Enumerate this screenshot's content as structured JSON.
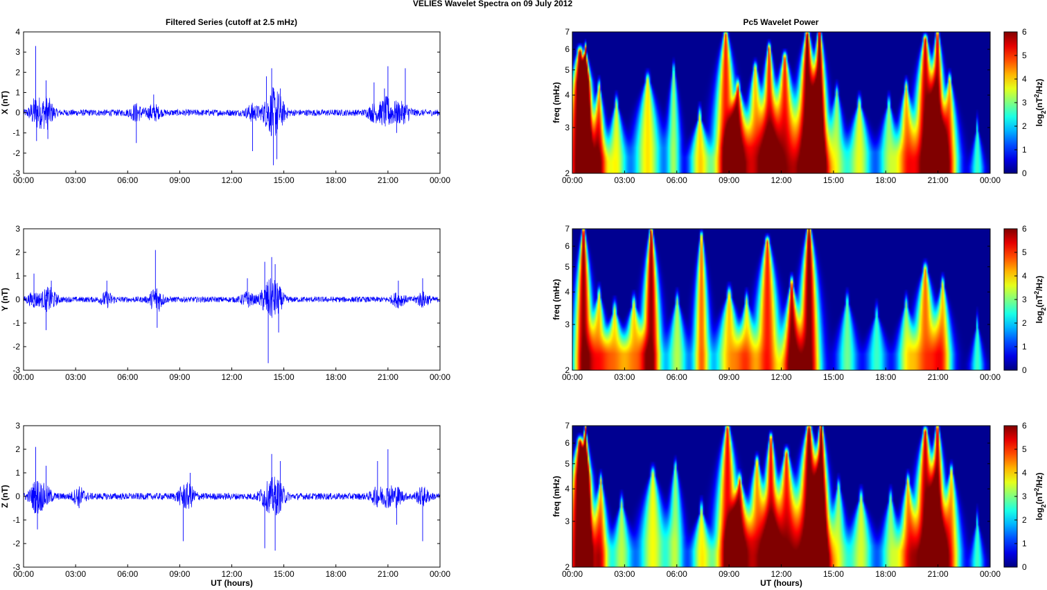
{
  "figure_title": "VELIES Wavelet Spectra on 09 July      2012",
  "left_title": "Filtered Series (cutoff at 2.5 mHz)",
  "right_title": "Pc5 Wavelet Power",
  "xlabel": "UT (hours)",
  "time_ticks": [
    "00:00",
    "03:00",
    "06:00",
    "09:00",
    "12:00",
    "15:00",
    "18:00",
    "21:00",
    "00:00"
  ],
  "freq_label": "freq (mHz)",
  "freq_ticks": [
    "2",
    "3",
    "4",
    "5",
    "6",
    "7"
  ],
  "colorbar_label": "log2(nT2/Hz)",
  "colorbar_ticks": [
    "0",
    "1",
    "2",
    "3",
    "4",
    "5",
    "6"
  ],
  "colors": {
    "trace": "#0000ff",
    "background_spectrum": "#00008f"
  },
  "chart_data": [
    {
      "type": "line",
      "component": "X",
      "ylabel": "X (nT)",
      "xlim": [
        0,
        24
      ],
      "ylim": [
        -3,
        4
      ],
      "yticks": [
        "-3",
        "-2",
        "-1",
        "0",
        "1",
        "2",
        "3",
        "4"
      ],
      "noise_amplitude": 0.2,
      "spikes": [
        [
          0.7,
          3.3
        ],
        [
          0.75,
          -1.4
        ],
        [
          1.3,
          1.6
        ],
        [
          1.4,
          -1.3
        ],
        [
          6.5,
          -1.5
        ],
        [
          7.5,
          0.9
        ],
        [
          13.2,
          -1.9
        ],
        [
          14.0,
          1.8
        ],
        [
          14.3,
          2.2
        ],
        [
          14.4,
          -2.6
        ],
        [
          14.6,
          -2.3
        ],
        [
          14.8,
          1.2
        ],
        [
          20.2,
          1.5
        ],
        [
          20.8,
          1.2
        ],
        [
          21.0,
          2.3
        ],
        [
          21.5,
          -1.0
        ],
        [
          22.0,
          2.2
        ]
      ]
    },
    {
      "type": "line",
      "component": "Y",
      "ylabel": "Y (nT)",
      "xlim": [
        0,
        24
      ],
      "ylim": [
        -3,
        3
      ],
      "yticks": [
        "-3",
        "-2",
        "-1",
        "0",
        "1",
        "2",
        "3"
      ],
      "noise_amplitude": 0.15,
      "spikes": [
        [
          0.6,
          1.1
        ],
        [
          1.3,
          -1.3
        ],
        [
          1.6,
          0.8
        ],
        [
          4.8,
          0.8
        ],
        [
          7.6,
          2.1
        ],
        [
          7.7,
          -1.2
        ],
        [
          12.9,
          0.9
        ],
        [
          13.9,
          1.6
        ],
        [
          14.1,
          -2.7
        ],
        [
          14.3,
          1.8
        ],
        [
          14.5,
          1.5
        ],
        [
          14.7,
          -1.4
        ],
        [
          21.6,
          0.8
        ],
        [
          23.0,
          0.9
        ]
      ]
    },
    {
      "type": "line",
      "component": "Z",
      "ylabel": "Z (nT)",
      "xlim": [
        0,
        24
      ],
      "ylim": [
        -3,
        3
      ],
      "yticks": [
        "-3",
        "-2",
        "-1",
        "0",
        "1",
        "2",
        "3"
      ],
      "noise_amplitude": 0.18,
      "spikes": [
        [
          0.7,
          2.1
        ],
        [
          0.8,
          -1.4
        ],
        [
          1.3,
          1.3
        ],
        [
          3.2,
          -0.5
        ],
        [
          9.2,
          -1.9
        ],
        [
          9.6,
          1.0
        ],
        [
          13.9,
          -2.2
        ],
        [
          14.3,
          1.8
        ],
        [
          14.5,
          -2.3
        ],
        [
          14.8,
          1.5
        ],
        [
          20.4,
          1.5
        ],
        [
          21.0,
          2.0
        ],
        [
          21.5,
          -1.2
        ],
        [
          23.0,
          -1.9
        ]
      ]
    },
    {
      "type": "heatmap",
      "component": "X",
      "xlim": [
        0,
        24
      ],
      "ylim_mhz": [
        2,
        7
      ],
      "zlim": [
        0,
        6
      ],
      "blobs": [
        [
          0.4,
          2.2,
          5.8,
          1.0,
          6
        ],
        [
          0.7,
          4.5,
          6.0,
          0.3,
          6
        ],
        [
          1.5,
          2.2,
          4.2,
          0.5,
          4.2
        ],
        [
          2.5,
          2.3,
          3.6,
          0.6,
          3.5
        ],
        [
          4.3,
          2.5,
          4.5,
          0.8,
          3.8
        ],
        [
          5.8,
          2.7,
          5.0,
          0.4,
          3
        ],
        [
          7.3,
          2.3,
          3.2,
          0.6,
          3.8
        ],
        [
          8.8,
          2.2,
          6.8,
          0.8,
          5
        ],
        [
          9.5,
          2.5,
          4.2,
          0.7,
          4.5
        ],
        [
          10.5,
          2.2,
          5.0,
          0.7,
          4
        ],
        [
          11.3,
          2.3,
          6.0,
          0.6,
          5
        ],
        [
          12.2,
          2.2,
          5.5,
          0.8,
          5
        ],
        [
          13.5,
          2.1,
          6.8,
          0.8,
          6
        ],
        [
          14.2,
          2.1,
          7.0,
          0.6,
          6
        ],
        [
          15.2,
          2.2,
          4.0,
          0.6,
          3
        ],
        [
          16.5,
          2.4,
          3.6,
          0.7,
          3.5
        ],
        [
          18.2,
          2.4,
          3.6,
          0.6,
          3
        ],
        [
          19.2,
          2.3,
          4.2,
          0.6,
          4
        ],
        [
          20.3,
          2.2,
          6.5,
          0.8,
          5.5
        ],
        [
          21.0,
          2.2,
          6.8,
          0.6,
          5.5
        ],
        [
          21.7,
          2.3,
          4.5,
          0.6,
          4
        ],
        [
          23.3,
          2.1,
          2.9,
          0.4,
          2.5
        ]
      ]
    },
    {
      "type": "heatmap",
      "component": "Y",
      "xlim": [
        0,
        24
      ],
      "ylim_mhz": [
        2,
        7
      ],
      "zlim": [
        0,
        6
      ],
      "blobs": [
        [
          0.6,
          2.2,
          6.8,
          0.6,
          5.8
        ],
        [
          1.5,
          2.3,
          3.8,
          0.6,
          3.8
        ],
        [
          2.4,
          2.3,
          3.3,
          0.7,
          3.8
        ],
        [
          3.5,
          2.3,
          3.5,
          0.7,
          3.8
        ],
        [
          4.5,
          2.3,
          6.8,
          0.6,
          5.8
        ],
        [
          6.0,
          2.3,
          3.6,
          0.6,
          3.2
        ],
        [
          7.4,
          2.3,
          6.5,
          0.5,
          4.5
        ],
        [
          9.0,
          2.3,
          3.8,
          0.8,
          4
        ],
        [
          10.0,
          2.3,
          3.6,
          0.6,
          3.5
        ],
        [
          11.2,
          2.2,
          6.2,
          0.8,
          5
        ],
        [
          12.6,
          2.1,
          4.2,
          0.6,
          5.5
        ],
        [
          13.6,
          2.1,
          7.0,
          0.7,
          6
        ],
        [
          15.8,
          2.3,
          3.6,
          0.6,
          2.8
        ],
        [
          17.5,
          2.3,
          3.2,
          0.6,
          2.5
        ],
        [
          19.2,
          2.3,
          3.5,
          0.6,
          3
        ],
        [
          20.3,
          2.3,
          4.8,
          0.8,
          4.5
        ],
        [
          21.3,
          2.3,
          4.2,
          0.6,
          4
        ],
        [
          23.3,
          2.1,
          2.9,
          0.4,
          2.5
        ]
      ]
    },
    {
      "type": "heatmap",
      "component": "Z",
      "xlim": [
        0,
        24
      ],
      "ylim_mhz": [
        2,
        7
      ],
      "zlim": [
        0,
        6
      ],
      "blobs": [
        [
          0.4,
          2.2,
          6.0,
          1.0,
          6
        ],
        [
          0.7,
          4.5,
          6.8,
          0.3,
          6
        ],
        [
          1.6,
          2.4,
          4.2,
          0.5,
          4
        ],
        [
          2.8,
          2.3,
          3.4,
          0.6,
          3.2
        ],
        [
          4.6,
          2.5,
          4.5,
          0.8,
          3.6
        ],
        [
          5.9,
          2.6,
          4.8,
          0.5,
          3
        ],
        [
          7.4,
          2.3,
          3.2,
          0.6,
          3.6
        ],
        [
          8.9,
          2.2,
          6.8,
          0.8,
          5.2
        ],
        [
          9.6,
          2.5,
          4.2,
          0.7,
          4.4
        ],
        [
          10.6,
          2.3,
          5.0,
          0.7,
          4.2
        ],
        [
          11.4,
          2.2,
          6.2,
          0.6,
          5.2
        ],
        [
          12.3,
          2.2,
          5.4,
          0.8,
          5
        ],
        [
          13.6,
          2.1,
          6.8,
          0.9,
          6
        ],
        [
          14.3,
          2.1,
          7.0,
          0.6,
          6
        ],
        [
          15.3,
          2.2,
          4.0,
          0.6,
          3
        ],
        [
          16.6,
          2.4,
          3.6,
          0.7,
          3.4
        ],
        [
          18.3,
          2.3,
          3.6,
          0.6,
          3
        ],
        [
          19.3,
          2.3,
          4.2,
          0.6,
          4
        ],
        [
          20.3,
          2.2,
          6.6,
          0.8,
          5.5
        ],
        [
          21.0,
          2.2,
          6.8,
          0.6,
          5.6
        ],
        [
          21.8,
          2.3,
          4.6,
          0.6,
          4
        ],
        [
          23.3,
          2.1,
          2.9,
          0.4,
          2.5
        ]
      ]
    }
  ]
}
